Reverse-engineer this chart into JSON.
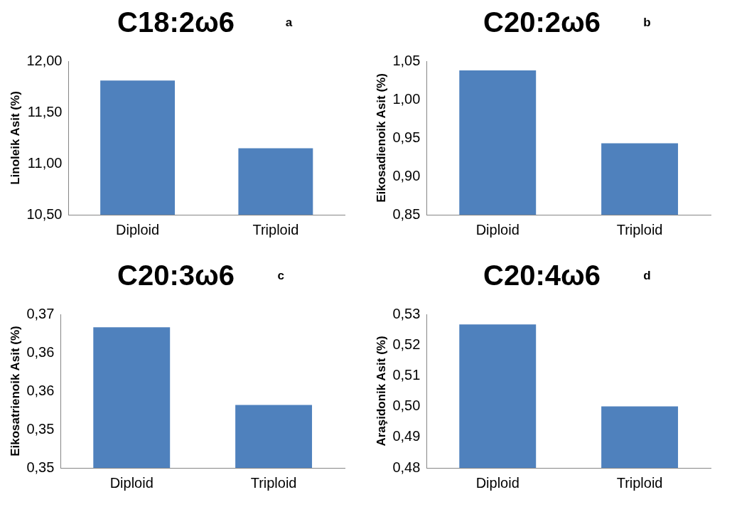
{
  "chart_data": [
    {
      "type": "bar",
      "title": "C18:2ω6",
      "annotations": [
        "a"
      ],
      "ylabel": "Linoleik Asit (%)",
      "categories": [
        "Diploid",
        "Triploid"
      ],
      "values": [
        11.81,
        11.15
      ],
      "color": "#4f81bd",
      "ylim": [
        10.5,
        12
      ],
      "yticks": [
        {
          "value": 10.5,
          "label": "10,50"
        },
        {
          "value": 11,
          "label": "11,00"
        },
        {
          "value": 11.5,
          "label": "11,50"
        },
        {
          "value": 12,
          "label": "12,00"
        }
      ],
      "grid": false,
      "legend": false
    },
    {
      "type": "bar",
      "title": "C20:2ω6",
      "annotations": [
        "b"
      ],
      "ylabel": "Eikosadienoik Asit (%)",
      "categories": [
        "Diploid",
        "Triploid"
      ],
      "values": [
        1.038,
        0.943
      ],
      "color": "#4f81bd",
      "ylim": [
        0.85,
        1.05
      ],
      "yticks": [
        {
          "value": 0.85,
          "label": "0,85"
        },
        {
          "value": 0.9,
          "label": "0,90"
        },
        {
          "value": 0.95,
          "label": "0,95"
        },
        {
          "value": 1,
          "label": "1,00"
        },
        {
          "value": 1.05,
          "label": "1,05"
        }
      ],
      "grid": false,
      "legend": false
    },
    {
      "type": "bar",
      "title": "C20:3ω6",
      "annotations": [
        "c"
      ],
      "ylabel": "Eikosatrienoik Asit (%)",
      "categories": [
        "Diploid",
        "Triploid"
      ],
      "values": [
        0.3683,
        0.3582
      ],
      "color": "#4f81bd",
      "ylim": [
        0.35,
        0.37
      ],
      "yticks": [
        {
          "value": 0.35,
          "label": "0,35"
        },
        {
          "value": 0.355,
          "label": "0,35"
        },
        {
          "value": 0.36,
          "label": "0,36"
        },
        {
          "value": 0.365,
          "label": "0,36"
        },
        {
          "value": 0.37,
          "label": "0,37"
        }
      ],
      "grid": false,
      "legend": false
    },
    {
      "type": "bar",
      "title": "C20:4ω6",
      "annotations": [
        "d"
      ],
      "ylabel": "Araşidonik Asit (%)",
      "categories": [
        "Diploid",
        "Triploid"
      ],
      "values": [
        0.5267,
        0.5
      ],
      "color": "#4f81bd",
      "ylim": [
        0.48,
        0.53
      ],
      "yticks": [
        {
          "value": 0.48,
          "label": "0,48"
        },
        {
          "value": 0.49,
          "label": "0,49"
        },
        {
          "value": 0.5,
          "label": "0,50"
        },
        {
          "value": 0.51,
          "label": "0,51"
        },
        {
          "value": 0.52,
          "label": "0,52"
        },
        {
          "value": 0.53,
          "label": "0,53"
        }
      ],
      "grid": false,
      "legend": false
    }
  ]
}
